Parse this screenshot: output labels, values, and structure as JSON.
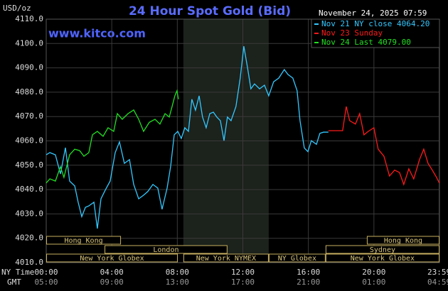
{
  "chart_data": {
    "type": "line",
    "title": "24 Hour Spot Gold (Bid)",
    "website": "www.kitco.com",
    "unit_label": "USD/oz",
    "timestamp": "November 24, 2025 07:59",
    "x_row_labels": [
      "NY Time",
      "GMT"
    ],
    "xlim": [
      0,
      24
    ],
    "ylim": [
      4010,
      4110
    ],
    "xticks": [
      {
        "value": 0,
        "label": "00:00"
      },
      {
        "value": 4,
        "label": "04:00"
      },
      {
        "value": 8,
        "label": "08:00"
      },
      {
        "value": 12,
        "label": "12:00"
      },
      {
        "value": 16,
        "label": "16:00"
      },
      {
        "value": 20,
        "label": "20:00"
      },
      {
        "value": 23.98,
        "label": "23:59"
      }
    ],
    "xticks_gmt": [
      "05:00",
      "09:00",
      "13:00",
      "17:00",
      "21:00",
      "01:00",
      "04:59"
    ],
    "yticks": [
      {
        "value": 4010,
        "label": "4010.0"
      },
      {
        "value": 4020,
        "label": "4020.0"
      },
      {
        "value": 4030,
        "label": "4030.0"
      },
      {
        "value": 4040,
        "label": "4040.0"
      },
      {
        "value": 4050,
        "label": "4050.0"
      },
      {
        "value": 4060,
        "label": "4060.0"
      },
      {
        "value": 4070,
        "label": "4070.0"
      },
      {
        "value": 4080,
        "label": "4080.0"
      },
      {
        "value": 4090,
        "label": "4090.0"
      },
      {
        "value": 4100,
        "label": "4100.0"
      },
      {
        "value": 4110,
        "label": "4110.0"
      }
    ],
    "grid": true,
    "highlight_x": [
      8.37,
      13.58
    ],
    "series": [
      {
        "name": "Nov 21 NY close 4064.20",
        "color": "#33c8ff",
        "x": [
          0,
          0.22,
          0.56,
          0.87,
          1.17,
          1.43,
          1.74,
          1.95,
          2.17,
          2.39,
          2.6,
          2.91,
          3.12,
          3.34,
          3.6,
          3.9,
          4.21,
          4.47,
          4.77,
          5.08,
          5.34,
          5.64,
          5.94,
          6.2,
          6.51,
          6.81,
          7.07,
          7.38,
          7.59,
          7.81,
          8.03,
          8.24,
          8.46,
          8.68,
          8.89,
          9.11,
          9.33,
          9.54,
          9.76,
          9.98,
          10.2,
          10.41,
          10.63,
          10.85,
          11.06,
          11.28,
          11.58,
          11.84,
          12.06,
          12.28,
          12.49,
          12.71,
          13.02,
          13.32,
          13.58,
          13.88,
          14.19,
          14.53,
          14.75,
          15.05,
          15.31,
          15.49,
          15.75,
          15.97,
          16.18,
          16.49,
          16.7,
          16.92,
          17.22
        ],
        "values": [
          4054.3,
          4055.2,
          4054.3,
          4046.4,
          4057.2,
          4043.5,
          4041.5,
          4034.8,
          4028.9,
          4032.7,
          4033.3,
          4034.8,
          4024.0,
          4036.2,
          4039.7,
          4043.5,
          4055.2,
          4059.6,
          4050.8,
          4052.3,
          4042.1,
          4036.2,
          4037.7,
          4039.2,
          4042.1,
          4040.6,
          4031.9,
          4040.6,
          4049.4,
          4062.5,
          4063.9,
          4061.0,
          4065.4,
          4063.9,
          4077.1,
          4072.6,
          4078.5,
          4069.8,
          4065.4,
          4071.2,
          4071.8,
          4069.8,
          4068.3,
          4060.1,
          4069.8,
          4068.3,
          4074.1,
          4085.8,
          4098.9,
          4090.2,
          4081.4,
          4083.4,
          4081.4,
          4082.9,
          4078.5,
          4084.3,
          4085.8,
          4089.3,
          4087.3,
          4085.8,
          4080.6,
          4068.3,
          4057.1,
          4055.6,
          4060.1,
          4058.6,
          4063.1,
          4063.6,
          4063.6
        ]
      },
      {
        "name": "Nov 23 Sunday",
        "color": "#ff1a1a",
        "x": [
          17.22,
          18.09,
          18.31,
          18.52,
          18.87,
          19.13,
          19.39,
          19.65,
          20,
          20.26,
          20.61,
          20.95,
          21.26,
          21.56,
          21.82,
          22.13,
          22.43,
          22.78,
          23.04,
          23.3,
          23.56,
          23.82,
          23.99
        ],
        "values": [
          4064.2,
          4064.2,
          4074.1,
          4068.3,
          4066.9,
          4071.2,
          4062.5,
          4063.9,
          4065.4,
          4056.6,
          4053.7,
          4045.6,
          4048.0,
          4047.0,
          4042.1,
          4048.5,
          4044.4,
          4052.3,
          4056.6,
          4050.8,
          4048.0,
          4045.0,
          4042.7
        ]
      },
      {
        "name": "Nov 24 Last 4079.00",
        "color": "#22e022",
        "x": [
          0,
          0.22,
          0.56,
          0.87,
          1.08,
          1.43,
          1.74,
          2.04,
          2.3,
          2.6,
          2.82,
          3.12,
          3.47,
          3.77,
          4.12,
          4.34,
          4.64,
          4.99,
          5.34,
          5.64,
          5.94,
          6.29,
          6.64,
          6.94,
          7.25,
          7.51,
          7.68,
          7.85,
          7.98,
          8.07
        ],
        "values": [
          4042.7,
          4044.4,
          4043.5,
          4049.4,
          4045.0,
          4054.3,
          4056.6,
          4056.0,
          4053.7,
          4055.2,
          4062.5,
          4063.9,
          4061.9,
          4065.4,
          4063.9,
          4071.2,
          4068.9,
          4071.2,
          4072.7,
          4068.9,
          4063.9,
          4067.6,
          4068.9,
          4066.9,
          4071.2,
          4069.8,
          4074.1,
          4078.5,
          4080.6,
          4077.1
        ]
      }
    ],
    "sessions": [
      {
        "label": "Hong Kong",
        "start": 0,
        "end": 4.56,
        "row": 0
      },
      {
        "label": "Hong Kong",
        "start": 19.57,
        "end": 24,
        "row": 0
      },
      {
        "label": "London",
        "start": 3.56,
        "end": 11.06,
        "row": 1
      },
      {
        "label": "Sydney",
        "start": 17.05,
        "end": 24,
        "row": 1
      },
      {
        "label": "New York Globex",
        "start": 0,
        "end": 8.03,
        "row": 2
      },
      {
        "label": "New York NYMEX",
        "start": 8.37,
        "end": 13.58,
        "row": 2
      },
      {
        "label": "NY Globex",
        "start": 13.58,
        "end": 17.05,
        "row": 2
      },
      {
        "label": "New York Globex",
        "start": 17.05,
        "end": 24,
        "row": 2
      }
    ]
  }
}
